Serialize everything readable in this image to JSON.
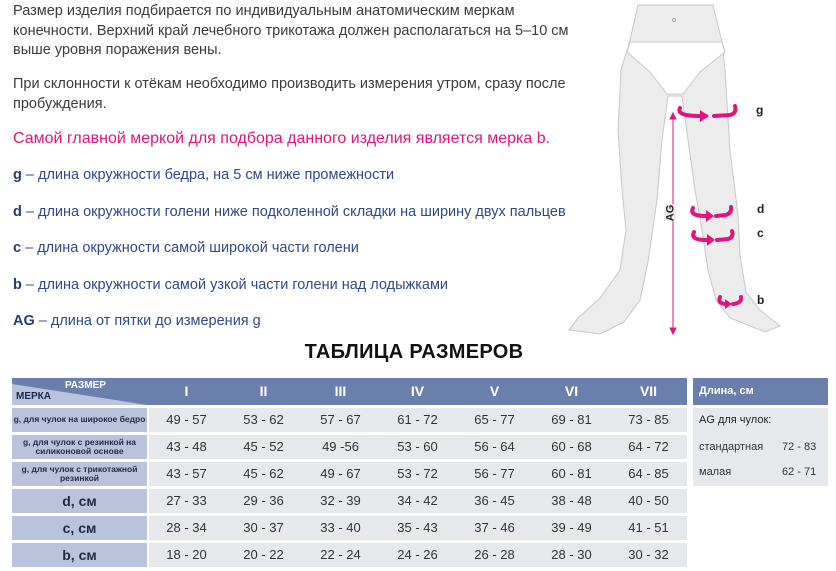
{
  "intro": {
    "paragraph1": "Размер изделия подбирается по индивидуальным анатомическим меркам конечности. Верхний край лечебного трикотажа должен располагаться на 5–10 см выше уровня поражения вены.",
    "paragraph2": "При склонности к отёкам необходимо производить измерения утром, сразу после пробуждения.",
    "highlight": "Самой главной меркой для подбора данного изделия является мерка b."
  },
  "definitions": [
    {
      "key": "g",
      "text": " – длина окружности бедра, на 5 см ниже промежности"
    },
    {
      "key": "d",
      "text": " – длина окружности голени ниже подколенной складки на ширину двух пальцев"
    },
    {
      "key": "c",
      "text": " – длина окружности самой широкой части голени"
    },
    {
      "key": "b",
      "text": " – длина окружности самой узкой части голени над лодыжками"
    },
    {
      "key": "AG",
      "text": " – длина от пятки до измерения g"
    }
  ],
  "figure": {
    "labels": {
      "g": "g",
      "d": "d",
      "c": "c",
      "b": "b",
      "ag": "AG"
    },
    "accent_color": "#e2137d"
  },
  "table": {
    "title": "ТАБЛИЦА РАЗМЕРОВ",
    "corner_size": "РАЗМЕР",
    "corner_measure": "МЕРКА",
    "sizes": [
      "I",
      "II",
      "III",
      "IV",
      "V",
      "VI",
      "VII"
    ],
    "rows": [
      {
        "label": "g, для чулок на широкое бедро",
        "values": [
          "49 - 57",
          "53 - 62",
          "57 - 67",
          "61 - 72",
          "65 - 77",
          "69 - 81",
          "73 - 85"
        ]
      },
      {
        "label": "g, для чулок с  резинкой на силиконовой основе",
        "values": [
          "43 - 48",
          "45 - 52",
          "49 -56",
          "53 - 60",
          "56 - 64",
          "60 - 68",
          "64 - 72"
        ]
      },
      {
        "label": "g, для чулок с трикотажной резинкой",
        "values": [
          "43 - 57",
          "45 - 62",
          "49 - 67",
          "53 - 72",
          "56 - 77",
          "60 - 81",
          "64 - 85"
        ]
      },
      {
        "label": "d, см",
        "values": [
          "27 - 33",
          "29 - 36",
          "32 - 39",
          "34 - 42",
          "36 - 45",
          "38 - 48",
          "40 - 50"
        ]
      },
      {
        "label": "c, см",
        "values": [
          "28 - 34",
          "30 - 37",
          "33 - 40",
          "35 - 43",
          "37 - 46",
          "39 - 49",
          "41 - 51"
        ]
      },
      {
        "label": "b, см",
        "values": [
          "18 - 20",
          "20 - 22",
          "22 - 24",
          "24 - 26",
          "26 - 28",
          "28 - 30",
          "30 - 32"
        ]
      }
    ],
    "header_color": "#6a7fac",
    "label_color": "#b9c4dc",
    "cell_color": "#e6e8ec"
  },
  "length_panel": {
    "header": "Длина, см",
    "subtitle": "AG для чулок:",
    "rows": [
      {
        "label": "стандартная",
        "value": "72 - 83"
      },
      {
        "label": "малая",
        "value": "62 - 71"
      }
    ]
  }
}
